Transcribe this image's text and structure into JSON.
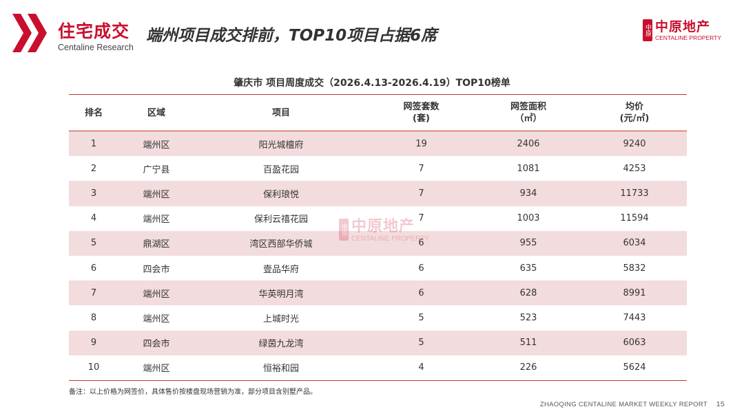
{
  "header": {
    "brand_title": "住宅成交",
    "brand_subtitle": "Centaline Research",
    "headline": "端州项目成交排前，TOP10项目占据6席",
    "logo_cn": "中原地产",
    "logo_en": "CENTALINE PROPERTY",
    "logo_seal": "中原",
    "accent_color": "#c8102e"
  },
  "table": {
    "title": "肇庆市 项目周度成交（2026.4.13-2026.4.19）TOP10榜单",
    "columns": [
      {
        "line1": "排名",
        "line2": ""
      },
      {
        "line1": "区域",
        "line2": ""
      },
      {
        "line1": "项目",
        "line2": ""
      },
      {
        "line1": "网签套数",
        "line2": "(套)"
      },
      {
        "line1": "网签面积",
        "line2": "（㎡）"
      },
      {
        "line1": "均价",
        "line2": "(元/㎡)"
      }
    ],
    "rows": [
      [
        "1",
        "端州区",
        "阳光城檀府",
        "19",
        "2406",
        "9240"
      ],
      [
        "2",
        "广宁县",
        "百盈花园",
        "7",
        "1081",
        "4253"
      ],
      [
        "3",
        "端州区",
        "保利琅悦",
        "7",
        "934",
        "11733"
      ],
      [
        "4",
        "端州区",
        "保利云禧花园",
        "7",
        "1003",
        "11594"
      ],
      [
        "5",
        "鼎湖区",
        "湾区西部华侨城",
        "6",
        "955",
        "6034"
      ],
      [
        "6",
        "四会市",
        "壹品华府",
        "6",
        "635",
        "5832"
      ],
      [
        "7",
        "端州区",
        "华英明月湾",
        "6",
        "628",
        "8991"
      ],
      [
        "8",
        "端州区",
        "上城时光",
        "5",
        "523",
        "7443"
      ],
      [
        "9",
        "四会市",
        "绿茵九龙湾",
        "5",
        "511",
        "6063"
      ],
      [
        "10",
        "端州区",
        "恒裕和园",
        "4",
        "226",
        "5624"
      ]
    ],
    "stripe_color": "#f3dcdd"
  },
  "watermark": {
    "cn": "中原地产",
    "en": "CENTALINE PROPERTY",
    "seal": "中原"
  },
  "note": "备注：以上价格为网签价，具体售价按楼盘现场营销为准，部分项目含别墅产品。",
  "footer": {
    "report": "ZHAOQING CENTALINE MARKET WEEKLY REPORT",
    "page": "15"
  }
}
